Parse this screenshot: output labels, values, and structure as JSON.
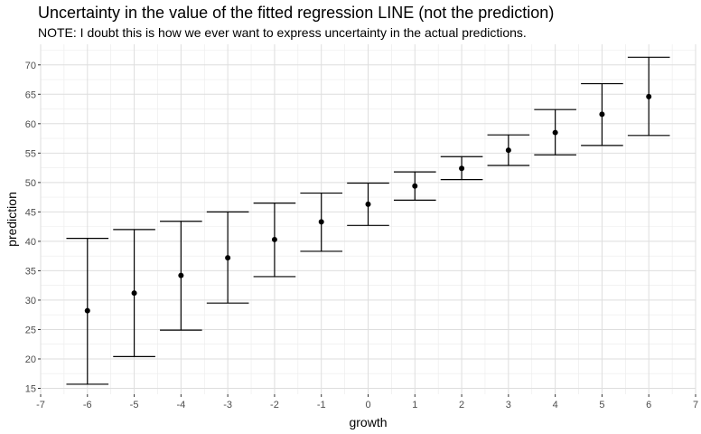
{
  "chart_data": {
    "type": "errorbar",
    "title": "Uncertainty in the value of the fitted regression LINE (not the prediction)",
    "subtitle": "NOTE: I doubt this is how we ever want to express uncertainty in the actual predictions.",
    "xlabel": "growth",
    "ylabel": "prediction",
    "xlim": [
      -7,
      7
    ],
    "ylim": [
      14,
      73.5
    ],
    "x_ticks": [
      -7,
      -6,
      -5,
      -4,
      -3,
      -2,
      -1,
      0,
      1,
      2,
      3,
      4,
      5,
      6,
      7
    ],
    "y_ticks": [
      15,
      20,
      25,
      30,
      35,
      40,
      45,
      50,
      55,
      60,
      65,
      70
    ],
    "grid": true,
    "points": [
      {
        "x": -6,
        "y": 28.2,
        "lower": 15.7,
        "upper": 40.5
      },
      {
        "x": -5,
        "y": 31.2,
        "lower": 20.4,
        "upper": 42.0
      },
      {
        "x": -4,
        "y": 34.2,
        "lower": 24.9,
        "upper": 43.4
      },
      {
        "x": -3,
        "y": 37.2,
        "lower": 29.5,
        "upper": 45.0
      },
      {
        "x": -2,
        "y": 40.3,
        "lower": 34.0,
        "upper": 46.5
      },
      {
        "x": -1,
        "y": 43.3,
        "lower": 38.3,
        "upper": 48.2
      },
      {
        "x": 0,
        "y": 46.3,
        "lower": 42.7,
        "upper": 49.9
      },
      {
        "x": 1,
        "y": 49.4,
        "lower": 47.0,
        "upper": 51.8
      },
      {
        "x": 2,
        "y": 52.4,
        "lower": 50.5,
        "upper": 54.4
      },
      {
        "x": 3,
        "y": 55.5,
        "lower": 52.9,
        "upper": 58.1
      },
      {
        "x": 4,
        "y": 58.5,
        "lower": 54.7,
        "upper": 62.4
      },
      {
        "x": 5,
        "y": 61.6,
        "lower": 56.3,
        "upper": 66.8
      },
      {
        "x": 6,
        "y": 64.6,
        "lower": 58.0,
        "upper": 71.3
      }
    ]
  }
}
